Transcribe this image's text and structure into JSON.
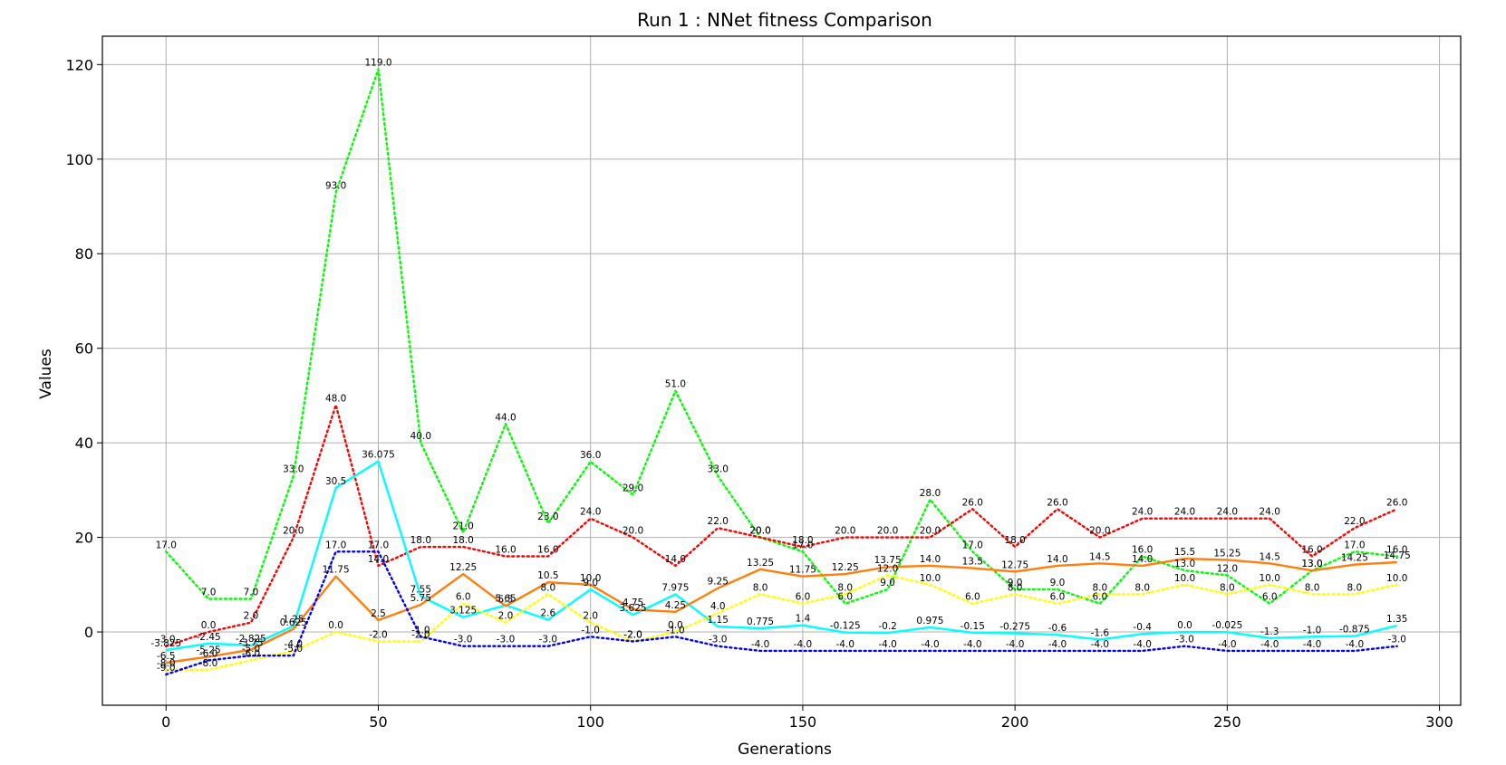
{
  "chart_data": {
    "type": "line",
    "title": "Run 1 : NNet fitness Comparison",
    "xlabel": "Generations",
    "ylabel": "Values",
    "xlim": [
      -15,
      305
    ],
    "ylim": [
      -15.5,
      126
    ],
    "xticks": [
      0,
      50,
      100,
      150,
      200,
      250,
      300
    ],
    "yticks": [
      0,
      20,
      40,
      60,
      80,
      100,
      120
    ],
    "grid": true,
    "x": [
      0,
      10,
      20,
      30,
      40,
      50,
      60,
      70,
      80,
      90,
      100,
      110,
      120,
      130,
      140,
      150,
      160,
      170,
      180,
      190,
      200,
      210,
      220,
      230,
      240,
      250,
      260,
      270,
      280,
      290
    ],
    "series": [
      {
        "color": "#00ff00",
        "style": "dotted",
        "values": [
          17.0,
          7.0,
          7.0,
          33.0,
          93.0,
          119.0,
          40.0,
          21.0,
          44.0,
          23.0,
          36.0,
          29.0,
          51.0,
          33.0,
          20.0,
          17.0,
          6.0,
          9.0,
          28.0,
          17.0,
          9.0,
          9.0,
          6.0,
          16.0,
          13.0,
          12.0,
          6.0,
          13.0,
          17.0,
          16.0
        ],
        "labels": [
          "17.0",
          "7.0",
          "7.0",
          "33.0",
          "93.0",
          "119.0",
          "40.0",
          "21.0",
          "44.0",
          "23.0",
          "36.0",
          "29.0",
          "51.0",
          "33.0",
          "20.0",
          "17.0",
          "6.0",
          "9.0",
          "28.0",
          "17.0",
          "9.0",
          "9.0",
          "6.0",
          "16.0",
          "13.0",
          "12.0",
          "6.0",
          "13.0",
          "17.0",
          "16.0"
        ]
      },
      {
        "color": "#ff0000",
        "style": "dotted",
        "values": [
          -3.0,
          0.0,
          2.0,
          20.0,
          48.0,
          14.0,
          18.0,
          18.0,
          16.0,
          16.0,
          24.0,
          20.0,
          14.0,
          22.0,
          20.0,
          18.0,
          20.0,
          20.0,
          20.0,
          26.0,
          18.0,
          26.0,
          20.0,
          24.0,
          24.0,
          24.0,
          24.0,
          16.0,
          22.0,
          26.0
        ],
        "labels": [
          "-3.0",
          "0.0",
          "2.0",
          "20.0",
          "48.0",
          "14.0",
          "18.0",
          "18.0",
          "16.0",
          "16.0",
          "24.0",
          "20.0",
          "14.0",
          "22.0",
          "20.0",
          "18.0",
          "20.0",
          "20.0",
          "20.0",
          "26.0",
          "18.0",
          "26.0",
          "20.0",
          "24.0",
          "24.0",
          "24.0",
          "24.0",
          "16.0",
          "22.0",
          "26.0"
        ]
      },
      {
        "color": "#00ffff",
        "style": "solid",
        "values": [
          -3.825,
          -2.45,
          -2.825,
          1.25,
          30.5,
          36.075,
          7.55,
          3.125,
          5.65,
          2.6,
          9.0,
          3.625,
          7.975,
          1.15,
          0.775,
          1.4,
          -0.125,
          -0.2,
          0.975,
          -0.15,
          -0.275,
          -0.6,
          -1.6,
          -0.4,
          0.0,
          -0.025,
          -1.3,
          -1.0,
          -0.875,
          1.35
        ],
        "labels": [
          "-3.825",
          "-2.45",
          "-2.825",
          "1.25",
          "30.5",
          "36.075",
          "7.55",
          "3.125",
          "5.65",
          "2.6",
          "9.0",
          "3.625",
          "7.975",
          "1.15",
          "0.775",
          "1.4",
          "-0.125",
          "-0.2",
          "0.975",
          "-0.15",
          "-0.275",
          "-0.6",
          "-1.6",
          "-0.4",
          "0.0",
          "-0.025",
          "-1.3",
          "-1.0",
          "-0.875",
          "1.35"
        ]
      },
      {
        "color": "#ff7f0e",
        "style": "solid",
        "values": [
          -6.5,
          -5.25,
          -3.75,
          0.625,
          11.75,
          2.5,
          5.75,
          12.25,
          5.5,
          10.5,
          10.0,
          4.75,
          4.25,
          9.25,
          13.25,
          11.75,
          12.25,
          13.75,
          14.0,
          13.5,
          12.75,
          14.0,
          14.5,
          14.0,
          15.5,
          15.25,
          14.5,
          13.0,
          14.25,
          14.75
        ],
        "labels": [
          "-6.5",
          "-5.25",
          "-3.75",
          "0.625",
          "11.75",
          "2.5",
          "5.75",
          "12.25",
          "5.5",
          "10.5",
          "10.0",
          "4.75",
          "4.25",
          "9.25",
          "13.25",
          "11.75",
          "12.25",
          "13.75",
          "14.0",
          "13.5",
          "12.75",
          "14.0",
          "14.5",
          "14.0",
          "15.5",
          "15.25",
          "14.5",
          "13.0",
          "14.25",
          "14.75"
        ]
      },
      {
        "color": "#ffff00",
        "style": "dotted",
        "values": [
          -8.0,
          -8.0,
          -6.0,
          -4.0,
          0.0,
          -2.0,
          -2.0,
          6.0,
          2.0,
          8.0,
          2.0,
          -2.0,
          0.0,
          4.0,
          8.0,
          6.0,
          8.0,
          12.0,
          10.0,
          6.0,
          8.0,
          6.0,
          8.0,
          8.0,
          10.0,
          8.0,
          10.0,
          8.0,
          8.0,
          10.0
        ],
        "labels": [
          "-8.0",
          "-8.0",
          "-6.0",
          "-4.0",
          "0.0",
          "-2.0",
          "-2.0",
          "6.0",
          "2.0",
          "8.0",
          "2.0",
          "-2.0",
          "0.0",
          "4.0",
          "8.0",
          "6.0",
          "8.0",
          "12.0",
          "10.0",
          "6.0",
          "8.0",
          "6.0",
          "8.0",
          "8.0",
          "10.0",
          "8.0",
          "10.0",
          "8.0",
          "8.0",
          "10.0"
        ]
      },
      {
        "color": "#0000ff",
        "style": "dotted",
        "values": [
          -9.0,
          -6.0,
          -5.0,
          -5.0,
          17.0,
          17.0,
          -1.0,
          -3.0,
          -3.0,
          -3.0,
          -1.0,
          -2.0,
          -1.0,
          -3.0,
          -4.0,
          -4.0,
          -4.0,
          -4.0,
          -4.0,
          -4.0,
          -4.0,
          -4.0,
          -4.0,
          -4.0,
          -3.0,
          -4.0,
          -4.0,
          -4.0,
          -4.0,
          -3.0
        ],
        "labels": [
          "-9.0",
          "-6.0",
          "-5.0",
          "-5.0",
          "17.0",
          "17.0",
          "-1.0",
          "-3.0",
          "-3.0",
          "-3.0",
          "-1.0",
          "-2.0",
          "-1.0",
          "-3.0",
          "-4.0",
          "-4.0",
          "-4.0",
          "-4.0",
          "-4.0",
          "-4.0",
          "-4.0",
          "-4.0",
          "-4.0",
          "-4.0",
          "-3.0",
          "-4.0",
          "-4.0",
          "-4.0",
          "-4.0",
          "-3.0"
        ]
      }
    ]
  }
}
